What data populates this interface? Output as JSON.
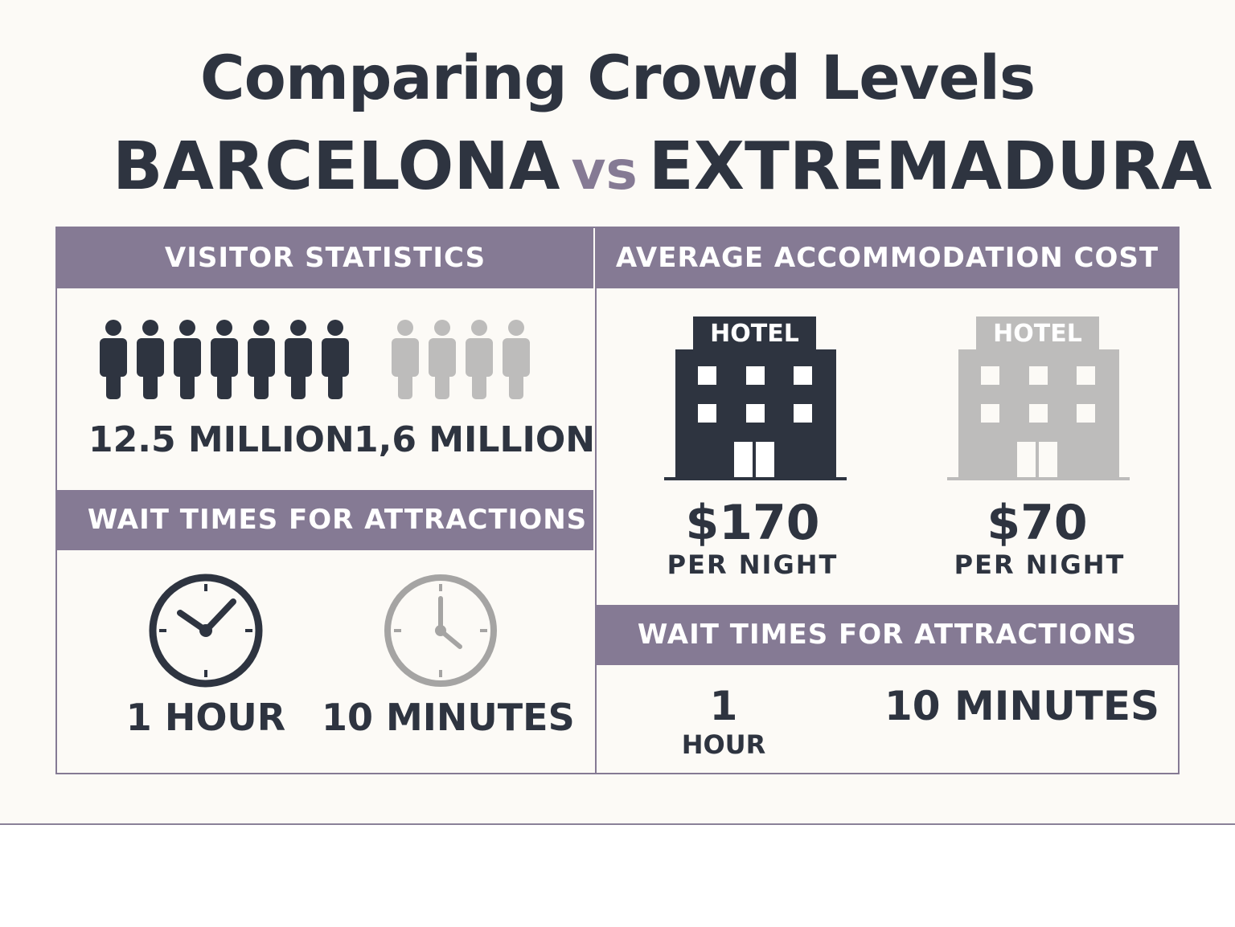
{
  "title": "Comparing Crowd Levels",
  "subtitle": {
    "left": "BARCELONA",
    "vs": "vs",
    "right": "EXTREMADURA"
  },
  "visitor_statistics": {
    "header": "VISITOR STATISTICS",
    "barcelona": "12.5 MILLION",
    "extremadura": "1,6 MILLION",
    "barcelona_icons": 7,
    "extremadura_icons": 4
  },
  "wait_left": {
    "header": "WAIT TIMES FOR ATTRACTIONS",
    "barcelona": "1 HOUR",
    "extremadura": "10 MINUTES"
  },
  "accommodation": {
    "header": "AVERAGE ACCOMMODATION COST",
    "hotel_label": "HOTEL",
    "barcelona_price": "$170",
    "extremadura_price": "$70",
    "per_night": "PER NIGHT"
  },
  "wait_right": {
    "header": "WAIT TIMES FOR ATTRACTIONS",
    "barcelona_num": "1",
    "barcelona_unit": "HOUR",
    "extremadura": "10 MINUTES"
  },
  "colors": {
    "accent": "#857a94",
    "dark": "#2e3440",
    "muted": "#bdbcbb",
    "background": "#fcfaf6"
  }
}
